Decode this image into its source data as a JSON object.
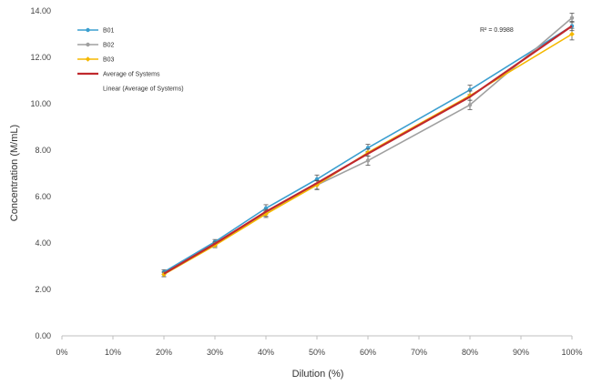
{
  "chart_data": {
    "type": "line",
    "xlabel": "Dilution (%)",
    "ylabel": "Concentration (M/mL)",
    "xlim": [
      0,
      100
    ],
    "ylim": [
      0,
      14
    ],
    "x_ticks": [
      "0%",
      "10%",
      "20%",
      "30%",
      "40%",
      "50%",
      "60%",
      "70%",
      "80%",
      "90%",
      "100%"
    ],
    "y_ticks": [
      "0.00",
      "2.00",
      "4.00",
      "6.00",
      "8.00",
      "10.00",
      "12.00",
      "14.00"
    ],
    "x": [
      20,
      30,
      40,
      50,
      60,
      80,
      100
    ],
    "grid": false,
    "legend_position": "top-left",
    "series": [
      {
        "name": "B01",
        "color": "#3b9fd0",
        "marker": "circle",
        "values": [
          2.75,
          4.05,
          5.5,
          6.75,
          8.1,
          10.6,
          13.35
        ],
        "errors": [
          0.1,
          0.1,
          0.15,
          0.18,
          0.15,
          0.2,
          0.2
        ]
      },
      {
        "name": "B02",
        "color": "#a0a0a0",
        "marker": "circle",
        "values": [
          2.65,
          3.95,
          5.3,
          6.5,
          7.55,
          9.95,
          13.7
        ],
        "errors": [
          0.1,
          0.1,
          0.15,
          0.18,
          0.2,
          0.2,
          0.2
        ]
      },
      {
        "name": "B03",
        "color": "#f5b800",
        "marker": "diamond",
        "values": [
          2.65,
          3.9,
          5.25,
          6.5,
          7.9,
          10.35,
          13.0
        ],
        "errors": [
          0.1,
          0.1,
          0.15,
          0.2,
          0.15,
          0.2,
          0.25
        ]
      },
      {
        "name": "Average of Systems",
        "color": "#c0282d",
        "marker": "none",
        "values": [
          2.68,
          3.97,
          5.35,
          6.58,
          7.85,
          10.3,
          13.35
        ],
        "errors": []
      }
    ],
    "legend": [
      {
        "label": "B01",
        "color": "#3b9fd0"
      },
      {
        "label": "B02",
        "color": "#a0a0a0"
      },
      {
        "label": "B03",
        "color": "#f5b800"
      },
      {
        "label": "Average of Systems",
        "color": "#c0282d"
      },
      {
        "label": "Linear (Average of Systems)",
        "color": ""
      }
    ],
    "annotation": "R² = 0.9988"
  }
}
